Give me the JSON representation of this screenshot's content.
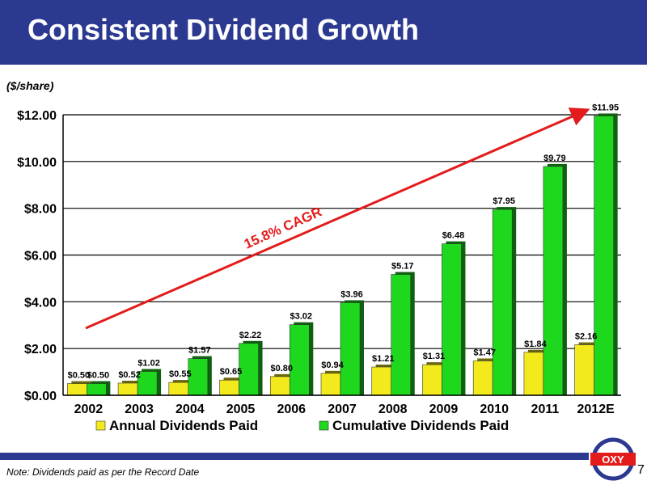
{
  "header": {
    "title": "Consistent Dividend Growth"
  },
  "unit_label": "($/share)",
  "footer": {
    "note": "Note: Dividends paid as per the Record Date",
    "page_number": "7",
    "logo_text": "OXY"
  },
  "colors": {
    "header_bg": "#2b3990",
    "annual": "#f2ea1c",
    "cumulative": "#1ed81e",
    "trend_arrow": "#e31b1b"
  },
  "chart_data": {
    "type": "bar",
    "categories": [
      "2002",
      "2003",
      "2004",
      "2005",
      "2006",
      "2007",
      "2008",
      "2009",
      "2010",
      "2011",
      "2012E"
    ],
    "series": [
      {
        "name": "Annual Dividends Paid",
        "values": [
          0.5,
          0.52,
          0.55,
          0.65,
          0.8,
          0.94,
          1.21,
          1.31,
          1.47,
          1.84,
          2.16
        ],
        "labels": [
          "$0.50",
          "$0.52",
          "$0.55",
          "$0.65",
          "$0.80",
          "$0.94",
          "$1.21",
          "$1.31",
          "$1.47",
          "$1.84",
          "$2.16"
        ]
      },
      {
        "name": "Cumulative Dividends Paid",
        "values": [
          0.5,
          1.02,
          1.57,
          2.22,
          3.02,
          3.96,
          5.17,
          6.48,
          7.95,
          9.79,
          11.95
        ],
        "labels": [
          "$0.50",
          "$1.02",
          "$1.57",
          "$2.22",
          "$3.02",
          "$3.96",
          "$5.17",
          "$6.48",
          "$7.95",
          "$9.79",
          "$11.95"
        ]
      }
    ],
    "ylim": [
      0,
      12
    ],
    "yticks": [
      0,
      2,
      4,
      6,
      8,
      10,
      12
    ],
    "ytick_labels": [
      "$0.00",
      "$2.00",
      "$4.00",
      "$6.00",
      "$8.00",
      "$10.00",
      "$12.00"
    ],
    "grid": true,
    "legend_position": "bottom",
    "annotation": "15.8% CAGR"
  }
}
